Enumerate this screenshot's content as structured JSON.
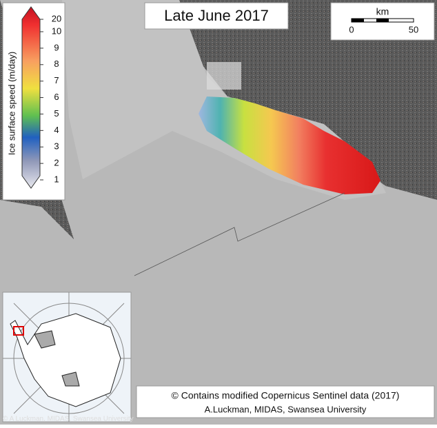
{
  "title": "Late June 2017",
  "colorbar": {
    "label": "Ice surface speed (m/day)",
    "ticks": [
      "20",
      "10",
      "9",
      "8",
      "7",
      "6",
      "5",
      "4",
      "3",
      "2",
      "1"
    ]
  },
  "scale_bar": {
    "unit": "km",
    "labels": [
      "0",
      "50"
    ]
  },
  "credits": [
    "© Contains modified Copernicus Sentinel data (2017)",
    "A.Luckman, MIDAS, Swansea University"
  ],
  "watermark": "© A Luckman, MIDAS, Swansea University"
}
